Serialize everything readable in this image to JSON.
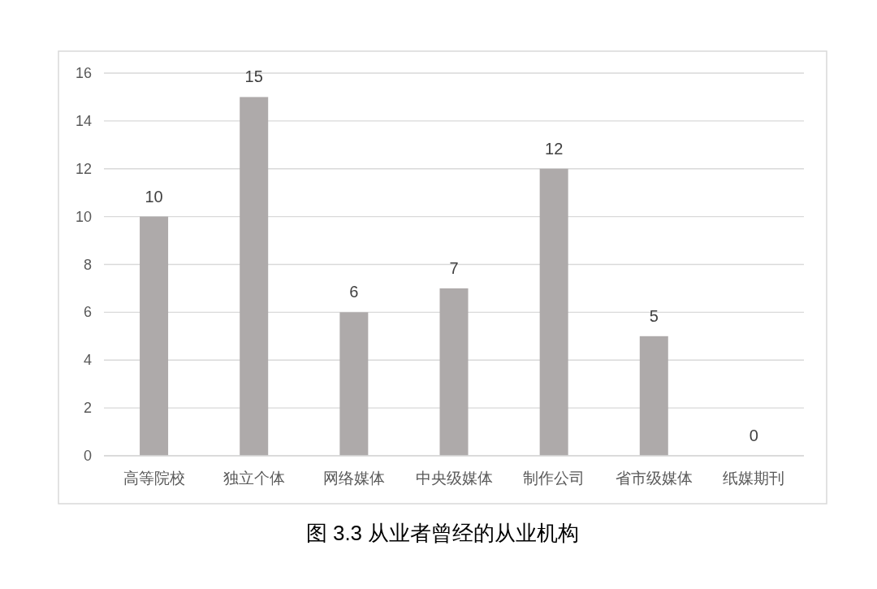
{
  "chart_data": {
    "type": "bar",
    "categories": [
      "高等院校",
      "独立个体",
      "网络媒体",
      "中央级媒体",
      "制作公司",
      "省市级媒体",
      "纸媒期刊"
    ],
    "values": [
      10,
      15,
      6,
      7,
      12,
      5,
      0
    ],
    "color": "#aeaaaa",
    "ylim": [
      0,
      16
    ],
    "yticks": [
      0,
      2,
      4,
      6,
      8,
      10,
      12,
      14,
      16
    ],
    "grid": "y",
    "data_labels": true,
    "annotations": [
      "图 3.3  从业者曾经的从业机构"
    ]
  }
}
